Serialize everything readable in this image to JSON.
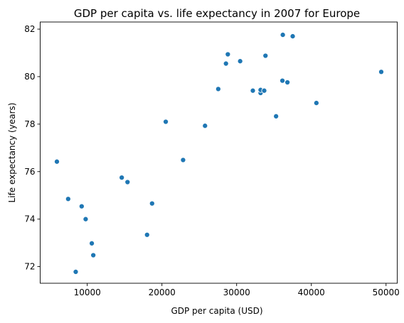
{
  "chart_data": {
    "type": "scatter",
    "title": "GDP per capita vs. life expectancy in 2007 for Europe",
    "xlabel": "GDP per capita (USD)",
    "ylabel": "Life expectancy (years)",
    "xlim": [
      3700,
      51500
    ],
    "ylim": [
      71.3,
      82.3
    ],
    "xticks": [
      10000,
      20000,
      30000,
      40000,
      50000
    ],
    "yticks": [
      72,
      74,
      76,
      78,
      80,
      82
    ],
    "grid": false,
    "legend": "none",
    "marker_color": "#1f77b4",
    "points": [
      {
        "x": 5937,
        "y": 76.42
      },
      {
        "x": 7446,
        "y": 74.85
      },
      {
        "x": 8458,
        "y": 71.78
      },
      {
        "x": 9254,
        "y": 74.54
      },
      {
        "x": 9787,
        "y": 74.0
      },
      {
        "x": 10611,
        "y": 72.98
      },
      {
        "x": 10808,
        "y": 72.48
      },
      {
        "x": 14619,
        "y": 75.75
      },
      {
        "x": 15390,
        "y": 75.56
      },
      {
        "x": 18009,
        "y": 73.34
      },
      {
        "x": 18678,
        "y": 74.66
      },
      {
        "x": 20510,
        "y": 78.1
      },
      {
        "x": 22833,
        "y": 76.49
      },
      {
        "x": 25768,
        "y": 77.93
      },
      {
        "x": 27538,
        "y": 79.48
      },
      {
        "x": 28570,
        "y": 80.55
      },
      {
        "x": 28821,
        "y": 80.94
      },
      {
        "x": 30470,
        "y": 80.65
      },
      {
        "x": 32170,
        "y": 79.41
      },
      {
        "x": 33203,
        "y": 79.31
      },
      {
        "x": 33207,
        "y": 79.44
      },
      {
        "x": 33692,
        "y": 79.41
      },
      {
        "x": 33860,
        "y": 80.88
      },
      {
        "x": 35278,
        "y": 78.33
      },
      {
        "x": 36126,
        "y": 79.83
      },
      {
        "x": 36181,
        "y": 81.76
      },
      {
        "x": 36797,
        "y": 79.76
      },
      {
        "x": 37506,
        "y": 81.7
      },
      {
        "x": 40676,
        "y": 78.89
      },
      {
        "x": 49357,
        "y": 80.2
      }
    ]
  }
}
